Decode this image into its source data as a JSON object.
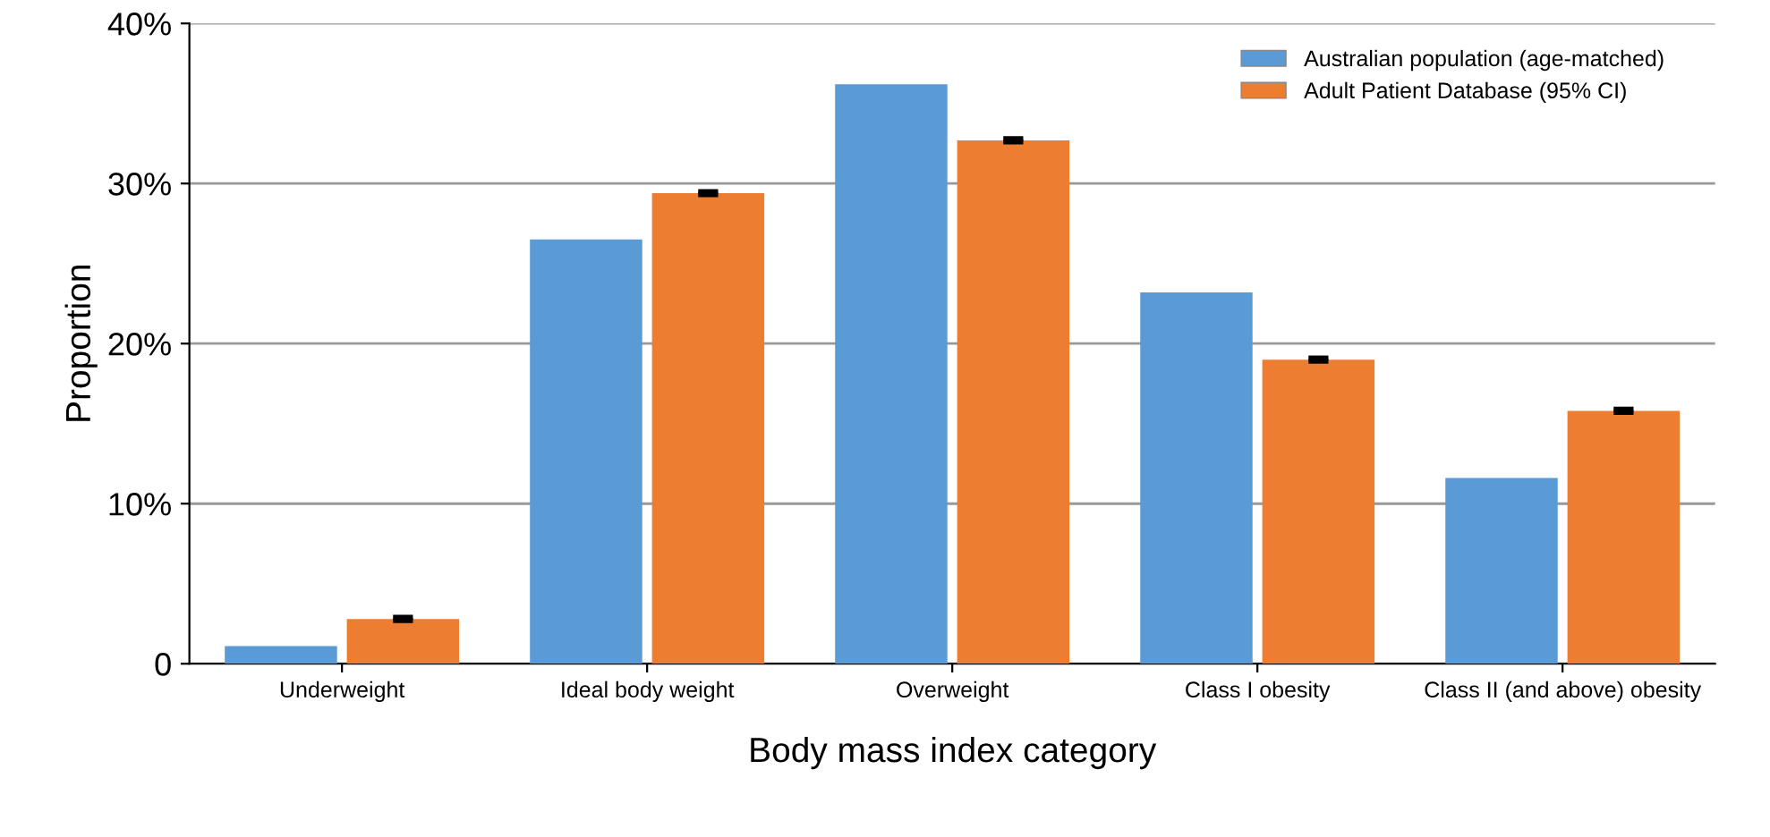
{
  "chart_data": {
    "type": "bar",
    "xlabel": "Body mass index category",
    "ylabel": "Proportion",
    "categories": [
      "Underweight",
      "Ideal body weight",
      "Overweight",
      "Class I obesity",
      "Class II (and above) obesity"
    ],
    "series": [
      {
        "name": "Australian population (age-matched)",
        "color": "#5b9bd5",
        "values": [
          1.1,
          26.5,
          36.2,
          23.2,
          11.6
        ]
      },
      {
        "name": "Adult Patient Database (95% CI)",
        "color": "#ed7d31",
        "values": [
          2.8,
          29.4,
          32.7,
          19.0,
          15.8
        ],
        "errors": [
          0.1,
          0.1,
          0.1,
          0.1,
          0.1
        ]
      }
    ],
    "ylim": [
      0,
      40
    ],
    "yticks": [
      {
        "value": 0,
        "label": "0"
      },
      {
        "value": 10,
        "label": "10%"
      },
      {
        "value": 20,
        "label": "20%"
      },
      {
        "value": 30,
        "label": "30%"
      },
      {
        "value": 40,
        "label": "40%"
      }
    ],
    "grid": "y",
    "legend": "top right"
  }
}
